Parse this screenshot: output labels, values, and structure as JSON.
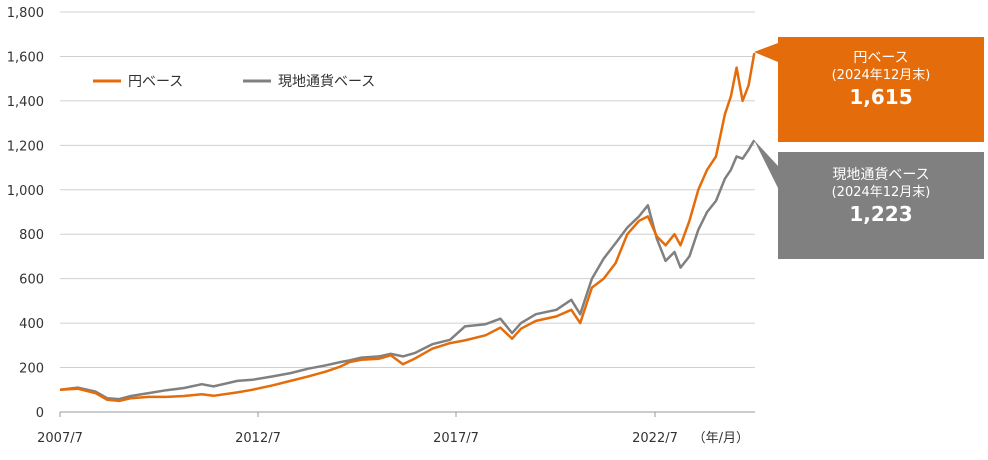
{
  "chart_data": {
    "type": "line",
    "ylim": [
      0,
      1800
    ],
    "yticks": [
      0,
      200,
      400,
      600,
      800,
      1000,
      1200,
      1400,
      1600,
      1800
    ],
    "ytick_labels": [
      "0",
      "200",
      "400",
      "600",
      "800",
      "1,000",
      "1,200",
      "1,400",
      "1,600",
      "1,800"
    ],
    "xticks": [
      2007.5,
      2012.5,
      2017.5,
      2022.5
    ],
    "xtick_labels": [
      "2007/7",
      "2012/7",
      "2017/7",
      "2022/7"
    ],
    "x_unit_label": "（年/月）",
    "x_range": [
      2007.5,
      2025.0
    ],
    "grid": "horizontal",
    "legend_position": "top-left",
    "series": [
      {
        "name": "円ベース",
        "color": "#e46c0a",
        "points": [
          [
            2007.5,
            100
          ],
          [
            2008.0,
            105
          ],
          [
            2008.5,
            85
          ],
          [
            2008.83,
            55
          ],
          [
            2009.17,
            50
          ],
          [
            2009.5,
            62
          ],
          [
            2010.0,
            68
          ],
          [
            2010.5,
            68
          ],
          [
            2011.0,
            72
          ],
          [
            2011.5,
            80
          ],
          [
            2011.83,
            73
          ],
          [
            2012.5,
            88
          ],
          [
            2012.92,
            100
          ],
          [
            2013.5,
            120
          ],
          [
            2014.0,
            140
          ],
          [
            2014.5,
            160
          ],
          [
            2015.0,
            182
          ],
          [
            2015.42,
            205
          ],
          [
            2015.67,
            225
          ],
          [
            2016.0,
            235
          ],
          [
            2016.5,
            240
          ],
          [
            2016.83,
            255
          ],
          [
            2017.17,
            215
          ],
          [
            2017.5,
            240
          ],
          [
            2018.0,
            285
          ],
          [
            2018.5,
            310
          ],
          [
            2018.92,
            322
          ],
          [
            2019.5,
            345
          ],
          [
            2019.92,
            380
          ],
          [
            2020.25,
            330
          ],
          [
            2020.5,
            375
          ],
          [
            2020.92,
            410
          ],
          [
            2021.5,
            430
          ],
          [
            2021.92,
            460
          ],
          [
            2022.17,
            400
          ],
          [
            2022.5,
            560
          ],
          [
            2022.83,
            600
          ],
          [
            2023.17,
            670
          ],
          [
            2023.5,
            800
          ],
          [
            2023.83,
            860
          ],
          [
            2024.08,
            880
          ],
          [
            2024.33,
            790
          ],
          [
            2024.58,
            750
          ],
          [
            2024.83,
            800
          ],
          [
            2025.0,
            750
          ],
          [
            2025.25,
            860
          ],
          [
            2025.5,
            1000
          ],
          [
            2025.75,
            1090
          ],
          [
            2026.0,
            1150
          ],
          [
            2026.25,
            1340
          ],
          [
            2026.42,
            1420
          ],
          [
            2026.58,
            1550
          ],
          [
            2026.75,
            1400
          ],
          [
            2026.92,
            1470
          ],
          [
            2027.08,
            1615
          ]
        ]
      },
      {
        "name": "現地通貨ベース",
        "color": "#808080",
        "points": [
          [
            2007.5,
            100
          ],
          [
            2008.0,
            110
          ],
          [
            2008.5,
            92
          ],
          [
            2008.83,
            62
          ],
          [
            2009.17,
            58
          ],
          [
            2009.5,
            72
          ],
          [
            2010.0,
            85
          ],
          [
            2010.5,
            98
          ],
          [
            2011.0,
            108
          ],
          [
            2011.5,
            125
          ],
          [
            2011.83,
            115
          ],
          [
            2012.5,
            140
          ],
          [
            2012.92,
            145
          ],
          [
            2013.5,
            160
          ],
          [
            2014.0,
            175
          ],
          [
            2014.5,
            195
          ],
          [
            2015.0,
            210
          ],
          [
            2015.42,
            225
          ],
          [
            2015.67,
            232
          ],
          [
            2016.0,
            245
          ],
          [
            2016.5,
            250
          ],
          [
            2016.83,
            262
          ],
          [
            2017.17,
            250
          ],
          [
            2017.5,
            265
          ],
          [
            2018.0,
            305
          ],
          [
            2018.5,
            325
          ],
          [
            2018.92,
            385
          ],
          [
            2019.5,
            395
          ],
          [
            2019.92,
            420
          ],
          [
            2020.25,
            355
          ],
          [
            2020.5,
            400
          ],
          [
            2020.92,
            440
          ],
          [
            2021.5,
            460
          ],
          [
            2021.92,
            505
          ],
          [
            2022.17,
            440
          ],
          [
            2022.5,
            600
          ],
          [
            2022.83,
            690
          ],
          [
            2023.17,
            760
          ],
          [
            2023.5,
            830
          ],
          [
            2023.83,
            880
          ],
          [
            2024.08,
            930
          ],
          [
            2024.33,
            780
          ],
          [
            2024.58,
            680
          ],
          [
            2024.83,
            720
          ],
          [
            2025.0,
            650
          ],
          [
            2025.25,
            700
          ],
          [
            2025.5,
            820
          ],
          [
            2025.75,
            900
          ],
          [
            2026.0,
            950
          ],
          [
            2026.25,
            1050
          ],
          [
            2026.42,
            1090
          ],
          [
            2026.58,
            1150
          ],
          [
            2026.75,
            1140
          ],
          [
            2026.92,
            1180
          ],
          [
            2027.08,
            1223
          ]
        ]
      }
    ]
  },
  "callouts": {
    "yen": {
      "line1": "円ベース",
      "line2": "(2024年12月末)",
      "value": "1,615"
    },
    "local": {
      "line1": "現地通貨ベース",
      "line2": "(2024年12月末)",
      "value": "1,223"
    }
  }
}
